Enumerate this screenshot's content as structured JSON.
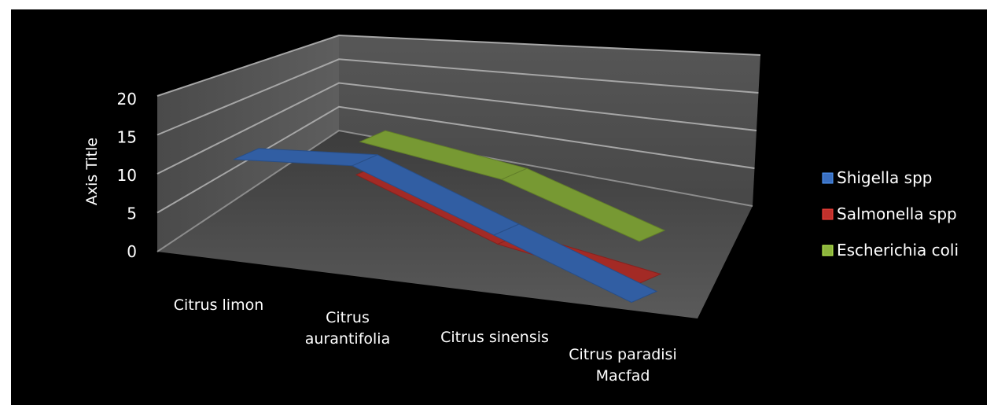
{
  "chart_data": {
    "type": "line",
    "style": "3d",
    "categories": [
      "Citrus limon",
      "Citrus aurantifolia",
      "Citrus sinensis",
      "Citrus paradisi Macfad"
    ],
    "category_lines": [
      [
        "Citrus limon"
      ],
      [
        "Citrus",
        "aurantifolia"
      ],
      [
        "Citrus sinensis"
      ],
      [
        "Citrus paradisi",
        "Macfad"
      ]
    ],
    "series": [
      {
        "name": "Shigella spp",
        "values": [
          6,
          16,
          10,
          5
        ],
        "color": "#3a6fc0"
      },
      {
        "name": "Salmonella spp",
        "values": [
          0,
          11,
          5,
          5
        ],
        "color": "#c0312c"
      },
      {
        "name": "Escherichia coli",
        "values": [
          0,
          14,
          14,
          10
        ],
        "color": "#8cb43c"
      }
    ],
    "ylabel": "Axis Title",
    "ylim": [
      0,
      20
    ],
    "yticks": [
      "0",
      "5",
      "10",
      "15",
      "20"
    ],
    "grid": true,
    "legend_position": "right",
    "background": "#000000",
    "wall_color": "#595959",
    "floor_color": "#4a4a4a"
  }
}
